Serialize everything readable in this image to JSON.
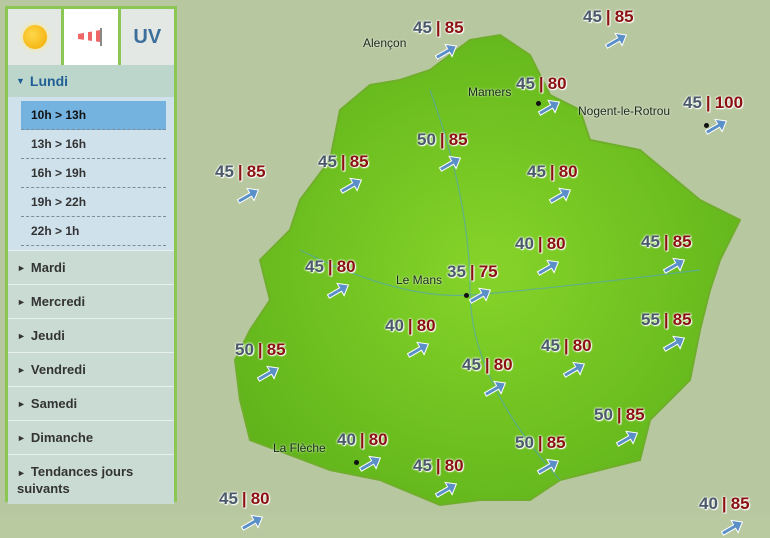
{
  "tabs": [
    {
      "name": "sun-icon"
    },
    {
      "name": "wind-sock-icon",
      "active": true
    },
    {
      "label": "UV"
    }
  ],
  "sidebar": {
    "open_day": "Lundi",
    "slots": [
      "10h > 13h",
      "13h > 16h",
      "16h > 19h",
      "19h > 22h",
      "22h > 1h"
    ],
    "selected_slot": "10h > 13h",
    "days": [
      "Mardi",
      "Mercredi",
      "Jeudi",
      "Vendredi",
      "Samedi",
      "Dimanche",
      "Tendances jours suivants"
    ]
  },
  "cities": [
    "Alençon",
    "Mamers",
    "Nogent-le-Rotrou",
    "Le Mans",
    "La Flèche"
  ],
  "stations": [
    {
      "wind": "45",
      "gust": "85"
    },
    {
      "wind": "45",
      "gust": "85"
    },
    {
      "wind": "45",
      "gust": "80"
    },
    {
      "wind": "45",
      "gust": "100"
    },
    {
      "wind": "50",
      "gust": "85"
    },
    {
      "wind": "45",
      "gust": "85"
    },
    {
      "wind": "45",
      "gust": "80"
    },
    {
      "wind": "45",
      "gust": "85"
    },
    {
      "wind": "40",
      "gust": "80"
    },
    {
      "wind": "45",
      "gust": "85"
    },
    {
      "wind": "45",
      "gust": "80"
    },
    {
      "wind": "35",
      "gust": "75"
    },
    {
      "wind": "40",
      "gust": "80"
    },
    {
      "wind": "55",
      "gust": "85"
    },
    {
      "wind": "50",
      "gust": "85"
    },
    {
      "wind": "45",
      "gust": "80"
    },
    {
      "wind": "45",
      "gust": "80"
    },
    {
      "wind": "50",
      "gust": "85"
    },
    {
      "wind": "40",
      "gust": "80"
    },
    {
      "wind": "50",
      "gust": "85"
    },
    {
      "wind": "45",
      "gust": "80"
    },
    {
      "wind": "45",
      "gust": "80"
    },
    {
      "wind": "40",
      "gust": "85"
    }
  ],
  "colors": {
    "region": "#7ed321",
    "wind": "#4a5a6a",
    "gust": "#8b1010",
    "arrow": "#5b8fc7"
  }
}
